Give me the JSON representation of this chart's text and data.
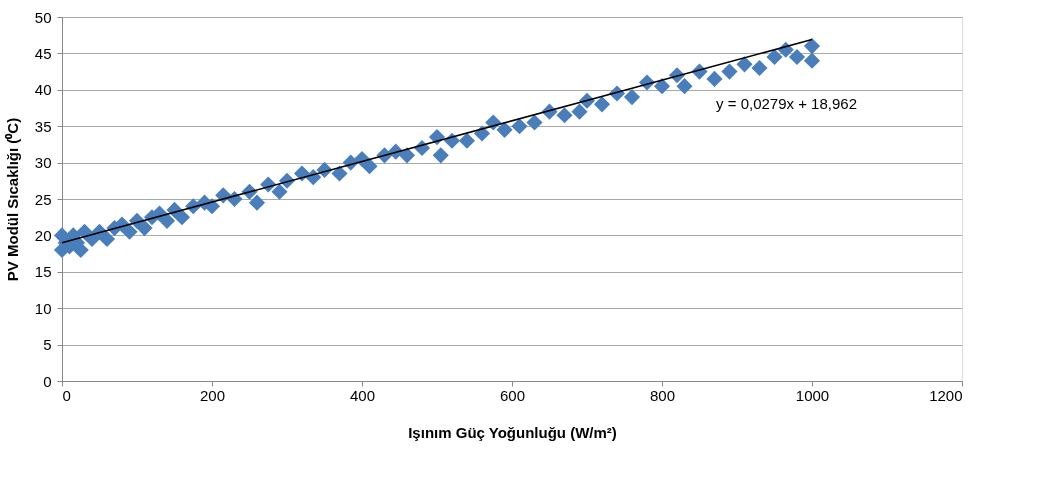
{
  "chart_data": {
    "type": "scatter",
    "xlabel": "Işınım Güç Yoğunluğu (W/m²)",
    "ylabel": "PV Modül Sıcaklığı  (⁰C)",
    "xlim": [
      0,
      1200
    ],
    "xticks": [
      0,
      200,
      400,
      600,
      800,
      1000,
      1200
    ],
    "ylim": [
      0,
      50
    ],
    "yticks": [
      0,
      5,
      10,
      15,
      20,
      25,
      30,
      35,
      40,
      45,
      50
    ],
    "grid": "y",
    "legend": false,
    "annotations": [
      "y = 0,0279x + 18,962"
    ],
    "series": [
      {
        "color": "#4a7ebb",
        "marker": "diamond",
        "x": [
          0,
          0,
          5,
          10,
          15,
          20,
          25,
          30,
          40,
          50,
          60,
          70,
          80,
          90,
          100,
          110,
          120,
          130,
          140,
          150,
          160,
          175,
          190,
          200,
          215,
          230,
          250,
          260,
          275,
          290,
          300,
          320,
          335,
          350,
          370,
          385,
          400,
          410,
          430,
          445,
          460,
          480,
          500,
          505,
          520,
          540,
          560,
          575,
          590,
          610,
          630,
          650,
          670,
          690,
          700,
          720,
          740,
          760,
          780,
          800,
          820,
          830,
          850,
          870,
          890,
          910,
          930,
          950,
          965,
          980,
          1000,
          1000
        ],
        "values": [
          18,
          20,
          19,
          18.5,
          20,
          19,
          18,
          20.5,
          19.5,
          20.5,
          19.5,
          21,
          21.5,
          20.5,
          22,
          21,
          22.5,
          23,
          22,
          23.5,
          22.5,
          24,
          24.5,
          24,
          25.5,
          25,
          26,
          24.5,
          27,
          26,
          27.5,
          28.5,
          28,
          29,
          28.5,
          30,
          30.5,
          29.5,
          31,
          31.5,
          31,
          32,
          33.5,
          31,
          33,
          33,
          34,
          35.5,
          34.5,
          35,
          35.5,
          37,
          36.5,
          37,
          38.5,
          38,
          39.5,
          39,
          41,
          40.5,
          42,
          40.5,
          42.5,
          41.5,
          42.5,
          43.5,
          43,
          44.5,
          45.5,
          44.5,
          46,
          44
        ]
      },
      {
        "type": "line",
        "color": "#000000",
        "marker": "none",
        "line_style": "solid",
        "x": [
          0,
          1000
        ],
        "values": [
          19.0,
          46.9
        ]
      }
    ]
  }
}
